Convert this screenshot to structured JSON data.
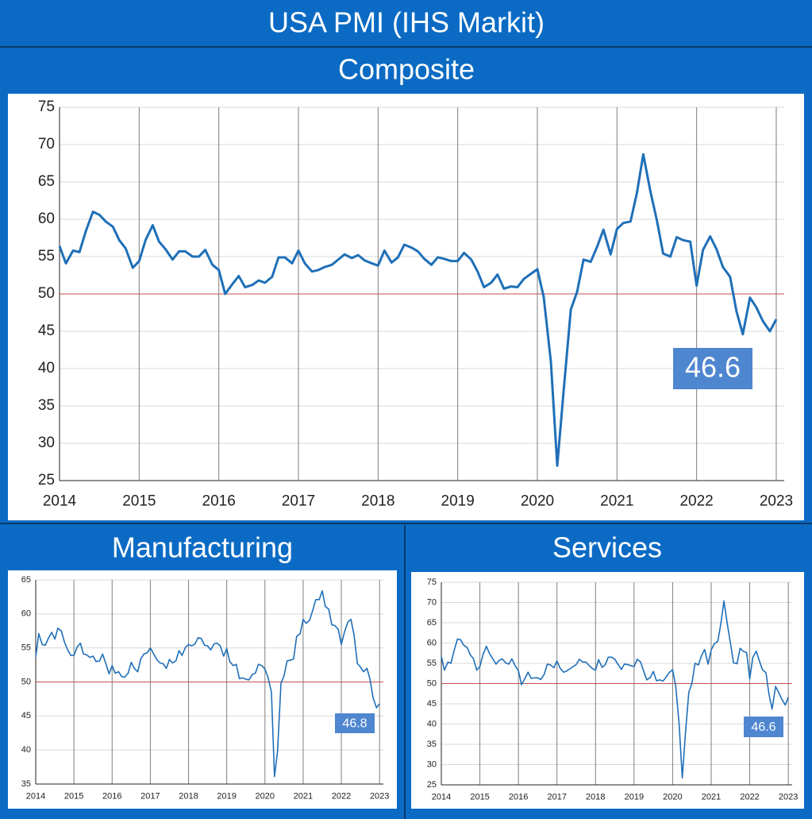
{
  "title": "USA PMI (IHS Markit)",
  "chart_data": [
    {
      "type": "line",
      "title": "Composite",
      "color": "#1f6fb8",
      "xlim": [
        2014,
        2023.1
      ],
      "xticks": [
        2014,
        2015,
        2016,
        2017,
        2018,
        2019,
        2020,
        2021,
        2022,
        2023
      ],
      "ylim": [
        25,
        75
      ],
      "yticks": [
        25,
        30,
        35,
        40,
        45,
        50,
        55,
        60,
        65,
        70,
        75
      ],
      "grid": true,
      "reference_line": {
        "value": 50,
        "color": "#c0504d"
      },
      "x": [
        2014.0,
        2014.08,
        2014.17,
        2014.25,
        2014.33,
        2014.42,
        2014.5,
        2014.58,
        2014.67,
        2014.75,
        2014.83,
        2014.92,
        2015.0,
        2015.08,
        2015.17,
        2015.25,
        2015.33,
        2015.42,
        2015.5,
        2015.58,
        2015.67,
        2015.75,
        2015.83,
        2015.92,
        2016.0,
        2016.08,
        2016.17,
        2016.25,
        2016.33,
        2016.42,
        2016.5,
        2016.58,
        2016.67,
        2016.75,
        2016.83,
        2016.92,
        2017.0,
        2017.08,
        2017.17,
        2017.25,
        2017.33,
        2017.42,
        2017.5,
        2017.58,
        2017.67,
        2017.75,
        2017.83,
        2017.92,
        2018.0,
        2018.08,
        2018.17,
        2018.25,
        2018.33,
        2018.42,
        2018.5,
        2018.58,
        2018.67,
        2018.75,
        2018.83,
        2018.92,
        2019.0,
        2019.08,
        2019.17,
        2019.25,
        2019.33,
        2019.42,
        2019.5,
        2019.58,
        2019.67,
        2019.75,
        2019.83,
        2019.92,
        2020.0,
        2020.08,
        2020.17,
        2020.25,
        2020.33,
        2020.42,
        2020.5,
        2020.58,
        2020.67,
        2020.75,
        2020.83,
        2020.92,
        2021.0,
        2021.08,
        2021.17,
        2021.25,
        2021.33,
        2021.42,
        2021.5,
        2021.58,
        2021.67,
        2021.75,
        2021.83,
        2021.92,
        2022.0,
        2022.08,
        2022.17,
        2022.25,
        2022.33,
        2022.42,
        2022.5,
        2022.58,
        2022.67,
        2022.75,
        2022.83,
        2022.92,
        2023.0
      ],
      "values": [
        56.4,
        54.1,
        55.8,
        55.6,
        58.4,
        61.0,
        60.6,
        59.7,
        59.0,
        57.2,
        56.1,
        53.5,
        54.4,
        57.2,
        59.2,
        57.0,
        56.0,
        54.6,
        55.7,
        55.7,
        55.0,
        55.0,
        55.9,
        53.9,
        53.2,
        50.0,
        51.3,
        52.4,
        50.9,
        51.2,
        51.8,
        51.5,
        52.3,
        54.9,
        54.9,
        54.1,
        55.8,
        54.1,
        53.0,
        53.2,
        53.6,
        53.9,
        54.6,
        55.3,
        54.8,
        55.2,
        54.5,
        54.1,
        53.8,
        55.8,
        54.2,
        54.9,
        56.6,
        56.2,
        55.7,
        54.7,
        53.9,
        54.9,
        54.7,
        54.4,
        54.4,
        55.5,
        54.6,
        53.0,
        50.9,
        51.5,
        52.6,
        50.7,
        51.0,
        50.9,
        52.0,
        52.7,
        53.3,
        49.6,
        40.9,
        27.0,
        37.0,
        47.9,
        50.3,
        54.6,
        54.3,
        56.3,
        58.6,
        55.3,
        58.7,
        59.5,
        59.7,
        63.5,
        68.7,
        63.7,
        59.9,
        55.4,
        55.0,
        57.6,
        57.2,
        57.0,
        51.1,
        55.9,
        57.7,
        56.0,
        53.6,
        52.3,
        47.7,
        44.6,
        49.5,
        48.2,
        46.4,
        45.0,
        46.6
      ]
    },
    {
      "type": "line",
      "title": "Manufacturing",
      "color": "#1f6fb8",
      "xlim": [
        2014,
        2023.1
      ],
      "xticks": [
        2014,
        2015,
        2016,
        2017,
        2018,
        2019,
        2020,
        2021,
        2022,
        2023
      ],
      "ylim": [
        35,
        65
      ],
      "yticks": [
        35,
        40,
        45,
        50,
        55,
        60,
        65
      ],
      "grid": true,
      "reference_line": {
        "value": 50,
        "color": "#c0504d"
      },
      "x": [
        2014.0,
        2014.08,
        2014.17,
        2014.25,
        2014.33,
        2014.42,
        2014.5,
        2014.58,
        2014.67,
        2014.75,
        2014.83,
        2014.92,
        2015.0,
        2015.08,
        2015.17,
        2015.25,
        2015.33,
        2015.42,
        2015.5,
        2015.58,
        2015.67,
        2015.75,
        2015.83,
        2015.92,
        2016.0,
        2016.08,
        2016.17,
        2016.25,
        2016.33,
        2016.42,
        2016.5,
        2016.58,
        2016.67,
        2016.75,
        2016.83,
        2016.92,
        2017.0,
        2017.08,
        2017.17,
        2017.25,
        2017.33,
        2017.42,
        2017.5,
        2017.58,
        2017.67,
        2017.75,
        2017.83,
        2017.92,
        2018.0,
        2018.08,
        2018.17,
        2018.25,
        2018.33,
        2018.42,
        2018.5,
        2018.58,
        2018.67,
        2018.75,
        2018.83,
        2018.92,
        2019.0,
        2019.08,
        2019.17,
        2019.25,
        2019.33,
        2019.42,
        2019.5,
        2019.58,
        2019.67,
        2019.75,
        2019.83,
        2019.92,
        2020.0,
        2020.08,
        2020.17,
        2020.25,
        2020.33,
        2020.42,
        2020.5,
        2020.58,
        2020.67,
        2020.75,
        2020.83,
        2020.92,
        2021.0,
        2021.08,
        2021.17,
        2021.25,
        2021.33,
        2021.42,
        2021.5,
        2021.58,
        2021.67,
        2021.75,
        2021.83,
        2021.92,
        2022.0,
        2022.08,
        2022.17,
        2022.25,
        2022.33,
        2022.42,
        2022.5,
        2022.58,
        2022.67,
        2022.75,
        2022.83,
        2022.92,
        2023.0
      ],
      "values": [
        53.7,
        57.1,
        55.5,
        55.4,
        56.4,
        57.3,
        56.3,
        57.9,
        57.5,
        55.9,
        54.8,
        53.9,
        53.9,
        55.1,
        55.7,
        54.1,
        54.0,
        53.6,
        53.8,
        53.0,
        53.1,
        54.1,
        52.8,
        51.2,
        52.4,
        51.3,
        51.5,
        50.8,
        50.7,
        51.3,
        52.9,
        52.0,
        51.5,
        53.4,
        54.1,
        54.3,
        55.0,
        54.2,
        53.3,
        52.8,
        52.7,
        52.0,
        53.3,
        52.8,
        53.1,
        54.6,
        53.9,
        55.1,
        55.5,
        55.3,
        55.6,
        56.5,
        56.4,
        55.4,
        55.3,
        54.7,
        55.6,
        55.7,
        55.3,
        53.8,
        54.9,
        53.0,
        52.4,
        52.6,
        50.5,
        50.6,
        50.4,
        50.3,
        51.1,
        51.3,
        52.6,
        52.4,
        51.9,
        50.7,
        48.5,
        36.1,
        39.8,
        49.8,
        50.9,
        53.1,
        53.2,
        53.4,
        56.7,
        57.1,
        59.2,
        58.6,
        59.1,
        60.5,
        62.1,
        62.1,
        63.4,
        61.1,
        60.7,
        58.4,
        58.3,
        57.7,
        55.5,
        57.3,
        58.8,
        59.2,
        57.0,
        52.7,
        52.2,
        51.5,
        52.0,
        50.4,
        47.7,
        46.2,
        46.8
      ]
    },
    {
      "type": "line",
      "title": "Services",
      "color": "#1f6fb8",
      "xlim": [
        2014,
        2023.1
      ],
      "xticks": [
        2014,
        2015,
        2016,
        2017,
        2018,
        2019,
        2020,
        2021,
        2022,
        2023
      ],
      "ylim": [
        25,
        75
      ],
      "yticks": [
        25,
        30,
        35,
        40,
        45,
        50,
        55,
        60,
        65,
        70,
        75
      ],
      "grid": true,
      "reference_line": {
        "value": 50,
        "color": "#c0504d"
      },
      "x": [
        2014.0,
        2014.08,
        2014.17,
        2014.25,
        2014.33,
        2014.42,
        2014.5,
        2014.58,
        2014.67,
        2014.75,
        2014.83,
        2014.92,
        2015.0,
        2015.08,
        2015.17,
        2015.25,
        2015.33,
        2015.42,
        2015.5,
        2015.58,
        2015.67,
        2015.75,
        2015.83,
        2015.92,
        2016.0,
        2016.08,
        2016.17,
        2016.25,
        2016.33,
        2016.42,
        2016.5,
        2016.58,
        2016.67,
        2016.75,
        2016.83,
        2016.92,
        2017.0,
        2017.08,
        2017.17,
        2017.25,
        2017.33,
        2017.42,
        2017.5,
        2017.58,
        2017.67,
        2017.75,
        2017.83,
        2017.92,
        2018.0,
        2018.08,
        2018.17,
        2018.25,
        2018.33,
        2018.42,
        2018.5,
        2018.58,
        2018.67,
        2018.75,
        2018.83,
        2018.92,
        2019.0,
        2019.08,
        2019.17,
        2019.25,
        2019.33,
        2019.42,
        2019.5,
        2019.58,
        2019.67,
        2019.75,
        2019.83,
        2019.92,
        2020.0,
        2020.08,
        2020.17,
        2020.25,
        2020.33,
        2020.42,
        2020.5,
        2020.58,
        2020.67,
        2020.75,
        2020.83,
        2020.92,
        2021.0,
        2021.08,
        2021.17,
        2021.25,
        2021.33,
        2021.42,
        2021.5,
        2021.58,
        2021.67,
        2021.75,
        2021.83,
        2021.92,
        2022.0,
        2022.08,
        2022.17,
        2022.25,
        2022.33,
        2022.42,
        2022.5,
        2022.58,
        2022.67,
        2022.75,
        2022.83,
        2022.92,
        2023.0
      ],
      "values": [
        56.7,
        53.3,
        55.3,
        55.0,
        58.1,
        61.0,
        60.8,
        59.5,
        58.9,
        57.1,
        56.2,
        53.3,
        54.2,
        57.1,
        59.2,
        57.4,
        56.2,
        54.8,
        55.7,
        56.1,
        55.1,
        54.8,
        56.1,
        54.3,
        53.2,
        49.7,
        51.3,
        52.8,
        51.3,
        51.4,
        51.4,
        51.0,
        52.3,
        54.8,
        54.6,
        53.9,
        55.6,
        53.8,
        52.8,
        53.1,
        53.6,
        54.2,
        54.7,
        56.0,
        55.3,
        55.3,
        54.5,
        53.7,
        53.3,
        55.9,
        54.0,
        54.6,
        56.5,
        56.5,
        56.0,
        54.8,
        53.5,
        54.8,
        54.7,
        54.4,
        54.2,
        56.0,
        55.3,
        53.0,
        50.9,
        51.5,
        53.0,
        50.7,
        50.9,
        50.6,
        51.6,
        52.8,
        53.4,
        49.4,
        39.8,
        26.7,
        37.5,
        47.9,
        50.0,
        55.0,
        54.6,
        56.9,
        58.4,
        54.8,
        58.3,
        59.8,
        60.4,
        64.7,
        70.4,
        64.6,
        59.9,
        55.1,
        54.9,
        58.7,
        58.0,
        57.6,
        51.2,
        56.5,
        58.0,
        55.6,
        53.4,
        52.7,
        47.3,
        43.7,
        49.3,
        47.8,
        46.2,
        44.7,
        46.6
      ]
    }
  ]
}
